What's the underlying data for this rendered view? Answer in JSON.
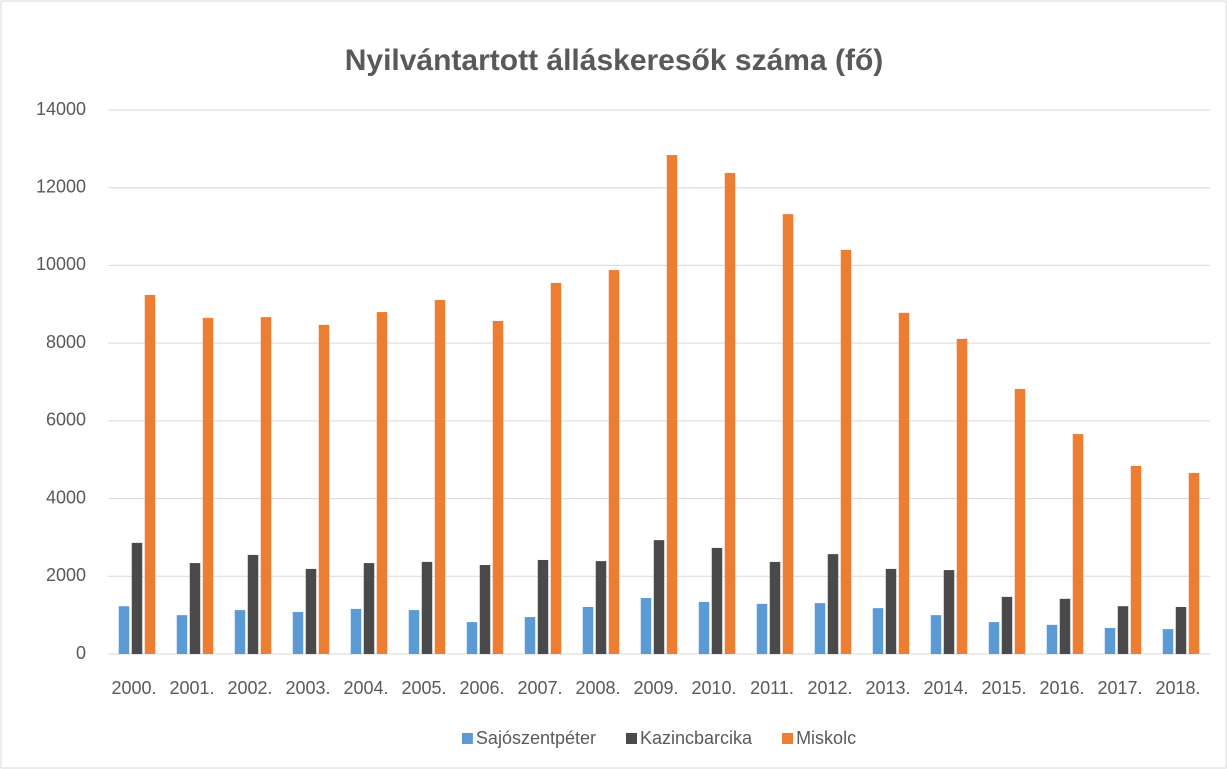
{
  "chart_data": {
    "type": "bar",
    "title": "Nyilvántartott álláskeresők száma (fő)",
    "categories": [
      "2000.",
      "2001.",
      "2002.",
      "2003.",
      "2004.",
      "2005.",
      "2006.",
      "2007.",
      "2008.",
      "2009.",
      "2010.",
      "2011.",
      "2012.",
      "2013.",
      "2014.",
      "2015.",
      "2016.",
      "2017.",
      "2018."
    ],
    "series": [
      {
        "name": "Sajószentpéter",
        "color": "#5b9bd5",
        "values": [
          1230,
          1000,
          1130,
          1080,
          1160,
          1130,
          820,
          950,
          1210,
          1440,
          1340,
          1290,
          1310,
          1180,
          1000,
          820,
          750,
          670,
          640
        ]
      },
      {
        "name": "Kazincbarcika",
        "color": "#4a4a4a",
        "values": [
          2860,
          2340,
          2550,
          2190,
          2340,
          2370,
          2290,
          2420,
          2390,
          2930,
          2730,
          2370,
          2570,
          2190,
          2160,
          1470,
          1420,
          1230,
          1210
        ]
      },
      {
        "name": "Miskolc",
        "color": "#ed7d31",
        "values": [
          9240,
          8650,
          8670,
          8470,
          8800,
          9110,
          8570,
          9550,
          9880,
          12840,
          12380,
          11320,
          10400,
          8780,
          8110,
          6820,
          5660,
          4840,
          4660
        ]
      }
    ],
    "ylim": [
      0,
      14000
    ],
    "yticks": [
      0,
      2000,
      4000,
      6000,
      8000,
      10000,
      12000,
      14000
    ],
    "grid": true,
    "legend": "bottom"
  }
}
